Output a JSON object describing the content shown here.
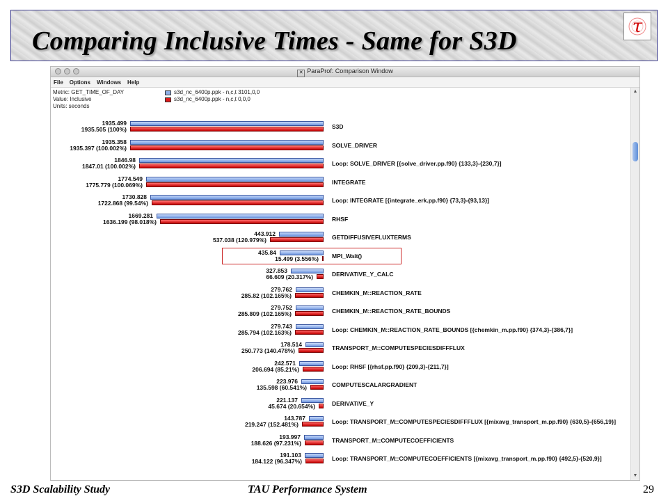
{
  "slide": {
    "title": "Comparing Inclusive Times - Same for S3D",
    "logo_glyph": "τ",
    "footer_left": "S3D Scalability Study",
    "footer_center": "TAU Performance System",
    "page_number": "29"
  },
  "window": {
    "title": "ParaProf: Comparison Window",
    "menu": [
      "File",
      "Options",
      "Windows",
      "Help"
    ]
  },
  "info": {
    "metric": "Metric: GET_TIME_OF_DAY",
    "value": "Value: Inclusive",
    "units": "Units: seconds"
  },
  "legend": {
    "series_a": "s3d_nc_6400p.ppk - n,c,t 3101,0,0",
    "series_b": "s3d_nc_6400p.ppk - n,c,t 0,0,0",
    "color_a": "#8fb0e8",
    "color_b": "#e01a1a"
  },
  "max_value": 1935.505,
  "highlight_row": 7,
  "rows": [
    {
      "name": "S3D",
      "a": 1935.499,
      "a_label": "1935.499",
      "b": 1935.505,
      "b_label": "1935.505 (100%)"
    },
    {
      "name": "SOLVE_DRIVER",
      "a": 1935.358,
      "a_label": "1935.358",
      "b": 1935.397,
      "b_label": "1935.397 (100.002%)"
    },
    {
      "name": "Loop: SOLVE_DRIVER [{solve_driver.pp.f90} {133,3}-{230,7}]",
      "a": 1846.98,
      "a_label": "1846.98",
      "b": 1847.01,
      "b_label": "1847.01 (100.002%)"
    },
    {
      "name": "INTEGRATE",
      "a": 1774.549,
      "a_label": "1774.549",
      "b": 1775.779,
      "b_label": "1775.779 (100.069%)"
    },
    {
      "name": "Loop: INTEGRATE [{integrate_erk.pp.f90} {73,3}-{93,13}]",
      "a": 1730.828,
      "a_label": "1730.828",
      "b": 1722.868,
      "b_label": "1722.868 (99.54%)"
    },
    {
      "name": "RHSF",
      "a": 1669.281,
      "a_label": "1669.281",
      "b": 1636.199,
      "b_label": "1636.199 (98.018%)"
    },
    {
      "name": "GETDIFFUSIVEFLUXTERMS",
      "a": 443.912,
      "a_label": "443.912",
      "b": 537.038,
      "b_label": "537.038 (120.979%)"
    },
    {
      "name": "MPI_Wait()",
      "a": 435.84,
      "a_label": "435.84",
      "b": 15.499,
      "b_label": "15.499 (3.556%)"
    },
    {
      "name": "DERIVATIVE_Y_CALC",
      "a": 327.853,
      "a_label": "327.853",
      "b": 66.609,
      "b_label": "66.609 (20.317%)"
    },
    {
      "name": "CHEMKIN_M::REACTION_RATE",
      "a": 279.762,
      "a_label": "279.762",
      "b": 285.82,
      "b_label": "285.82 (102.165%)"
    },
    {
      "name": "CHEMKIN_M::REACTION_RATE_BOUNDS",
      "a": 279.752,
      "a_label": "279.752",
      "b": 285.809,
      "b_label": "285.809 (102.165%)"
    },
    {
      "name": "Loop: CHEMKIN_M::REACTION_RATE_BOUNDS [{chemkin_m.pp.f90} {374,3}-{386,7}]",
      "a": 279.743,
      "a_label": "279.743",
      "b": 285.794,
      "b_label": "285.794 (102.163%)"
    },
    {
      "name": "TRANSPORT_M::COMPUTESPECIESDIFFFLUX",
      "a": 178.514,
      "a_label": "178.514",
      "b": 250.773,
      "b_label": "250.773 (140.478%)"
    },
    {
      "name": "Loop: RHSF [{rhsf.pp.f90} {209,3}-{211,7}]",
      "a": 242.571,
      "a_label": "242.571",
      "b": 206.694,
      "b_label": "206.694 (85.21%)"
    },
    {
      "name": "COMPUTESCALARGRADIENT",
      "a": 223.976,
      "a_label": "223.976",
      "b": 135.598,
      "b_label": "135.598 (60.541%)"
    },
    {
      "name": "DERIVATIVE_Y",
      "a": 221.137,
      "a_label": "221.137",
      "b": 45.674,
      "b_label": "45.674 (20.654%)"
    },
    {
      "name": "Loop: TRANSPORT_M::COMPUTESPECIESDIFFFLUX [{mixavg_transport_m.pp.f90} {630,5}-{656,19}]",
      "a": 143.787,
      "a_label": "143.787",
      "b": 219.247,
      "b_label": "219.247 (152.481%)"
    },
    {
      "name": "TRANSPORT_M::COMPUTECOEFFICIENTS",
      "a": 193.997,
      "a_label": "193.997",
      "b": 188.626,
      "b_label": "188.626 (97.231%)"
    },
    {
      "name": "Loop: TRANSPORT_M::COMPUTECOEFFICIENTS [{mixavg_transport_m.pp.f90} {492,5}-{520,9}]",
      "a": 191.103,
      "a_label": "191.103",
      "b": 184.122,
      "b_label": "184.122 (96.347%)"
    }
  ]
}
